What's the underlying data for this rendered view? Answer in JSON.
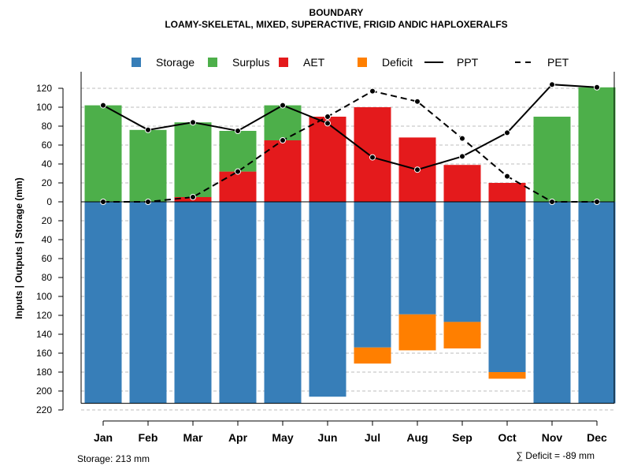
{
  "chart_data": {
    "type": "bar",
    "title": "BOUNDARY",
    "subtitle": "LOAMY-SKELETAL, MIXED, SUPERACTIVE, FRIGID ANDIC HAPLOXERALFS",
    "ylabel": "Inputs | Outputs | Storage     (mm)",
    "categories": [
      "Jan",
      "Feb",
      "Mar",
      "Apr",
      "May",
      "Jun",
      "Jul",
      "Aug",
      "Sep",
      "Oct",
      "Nov",
      "Dec"
    ],
    "y_ticks_up": [
      0,
      20,
      40,
      60,
      80,
      100,
      120
    ],
    "y_ticks_down": [
      20,
      40,
      60,
      80,
      100,
      120,
      140,
      160,
      180,
      200,
      220
    ],
    "ylim": [
      -220,
      125
    ],
    "legend": [
      {
        "key": "storage",
        "label": "Storage",
        "color": "#377EB8",
        "kind": "box"
      },
      {
        "key": "surplus",
        "label": "Surplus",
        "color": "#4DAF4A",
        "kind": "box"
      },
      {
        "key": "aet",
        "label": "AET",
        "color": "#E41A1C",
        "kind": "box"
      },
      {
        "key": "deficit",
        "label": "Deficit",
        "color": "#FF7F00",
        "kind": "box"
      },
      {
        "key": "ppt",
        "label": "PPT",
        "color": "#000000",
        "kind": "solid"
      },
      {
        "key": "pet",
        "label": "PET",
        "color": "#000000",
        "kind": "dashed"
      }
    ],
    "series": {
      "aet": [
        0,
        0,
        5,
        32,
        65,
        90,
        100,
        68,
        39,
        20,
        0,
        0
      ],
      "surplus": [
        102,
        76,
        79,
        43,
        37,
        0,
        0,
        0,
        0,
        0,
        90,
        121
      ],
      "storage": [
        213,
        213,
        213,
        213,
        213,
        206,
        154,
        119,
        127,
        180,
        213,
        213
      ],
      "deficit": [
        0,
        0,
        0,
        0,
        0,
        0,
        17,
        38,
        28,
        7,
        0,
        0
      ],
      "ppt": [
        102,
        76,
        84,
        75,
        102,
        83,
        47,
        34,
        48,
        73,
        124,
        121
      ],
      "pet": [
        0,
        0,
        5,
        32,
        65,
        90,
        117,
        106,
        67,
        27,
        0,
        0
      ]
    },
    "storage_label": "Storage: 213 mm",
    "deficit_label": "∑ Deficit = -89 mm"
  },
  "colors": {
    "storage": "#377EB8",
    "surplus": "#4DAF4A",
    "aet": "#E41A1C",
    "deficit": "#FF7F00",
    "grid": "#BEBEBE"
  }
}
